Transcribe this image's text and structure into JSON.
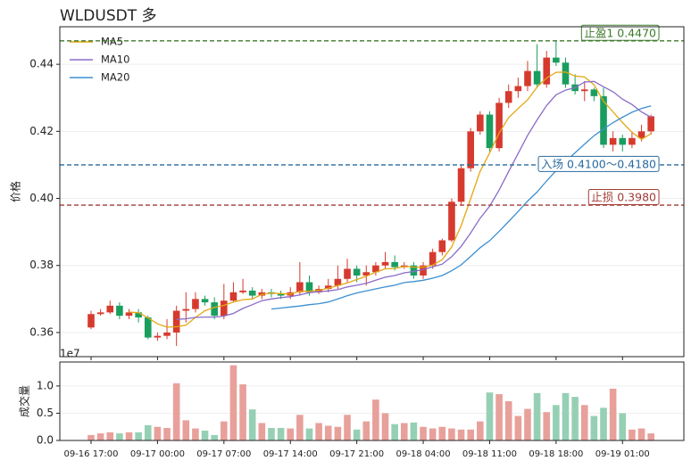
{
  "chart_data": [
    {
      "type": "candlestick",
      "title": "WLDUSDT  多",
      "ylabel": "价格",
      "offset_label": "1e7",
      "ylim": [
        0.3528,
        0.4512
      ],
      "yticks": [
        0.36,
        0.38,
        {
          "value": 0.4,
          "label": "0.40"
        },
        0.42,
        0.44
      ],
      "grid": true,
      "legend": "upper left",
      "up_color": "#d63a2e",
      "down_color": "#1a9e5f",
      "open": [
        0.3615,
        0.3655,
        0.366,
        0.368,
        0.365,
        0.366,
        0.3645,
        0.3585,
        0.359,
        0.36,
        0.3665,
        0.367,
        0.37,
        0.369,
        0.365,
        0.3695,
        0.372,
        0.3725,
        0.371,
        0.372,
        0.3715,
        0.371,
        0.372,
        0.375,
        0.372,
        0.373,
        0.374,
        0.376,
        0.379,
        0.377,
        0.378,
        0.38,
        0.381,
        0.3795,
        0.38,
        0.377,
        0.38,
        0.384,
        0.3875,
        0.399,
        0.409,
        0.42,
        0.425,
        0.415,
        0.4285,
        0.432,
        0.4335,
        0.438,
        0.434,
        0.442,
        0.4405,
        0.434,
        0.432,
        0.4325,
        0.4305,
        0.416,
        0.418,
        0.416,
        0.418,
        0.42
      ],
      "high": [
        0.3665,
        0.367,
        0.3695,
        0.369,
        0.367,
        0.367,
        0.365,
        0.36,
        0.364,
        0.368,
        0.372,
        0.372,
        0.371,
        0.3705,
        0.3745,
        0.375,
        0.376,
        0.3735,
        0.373,
        0.373,
        0.3725,
        0.3735,
        0.381,
        0.377,
        0.374,
        0.376,
        0.38,
        0.382,
        0.38,
        0.38,
        0.381,
        0.384,
        0.383,
        0.381,
        0.381,
        0.381,
        0.385,
        0.388,
        0.4,
        0.41,
        0.421,
        0.426,
        0.426,
        0.43,
        0.434,
        0.436,
        0.441,
        0.446,
        0.444,
        0.447,
        0.442,
        0.437,
        0.435,
        0.433,
        0.433,
        0.42,
        0.419,
        0.42,
        0.422,
        0.425
      ],
      "low": [
        0.361,
        0.365,
        0.3655,
        0.364,
        0.364,
        0.363,
        0.358,
        0.3575,
        0.358,
        0.356,
        0.363,
        0.366,
        0.368,
        0.364,
        0.364,
        0.369,
        0.3715,
        0.37,
        0.37,
        0.3705,
        0.37,
        0.37,
        0.371,
        0.371,
        0.3715,
        0.372,
        0.373,
        0.375,
        0.375,
        0.374,
        0.377,
        0.379,
        0.3785,
        0.379,
        0.376,
        0.376,
        0.379,
        0.383,
        0.387,
        0.398,
        0.408,
        0.419,
        0.414,
        0.414,
        0.427,
        0.43,
        0.432,
        0.433,
        0.433,
        0.4395,
        0.433,
        0.431,
        0.429,
        0.429,
        0.415,
        0.414,
        0.414,
        0.415,
        0.417,
        0.419
      ],
      "close": [
        0.3655,
        0.366,
        0.368,
        0.365,
        0.366,
        0.3645,
        0.3585,
        0.359,
        0.36,
        0.3665,
        0.367,
        0.37,
        0.369,
        0.365,
        0.3695,
        0.372,
        0.3725,
        0.371,
        0.372,
        0.3715,
        0.371,
        0.372,
        0.375,
        0.372,
        0.373,
        0.374,
        0.376,
        0.379,
        0.377,
        0.378,
        0.38,
        0.381,
        0.3795,
        0.38,
        0.377,
        0.38,
        0.384,
        0.3875,
        0.399,
        0.409,
        0.42,
        0.425,
        0.415,
        0.4285,
        0.432,
        0.4335,
        0.438,
        0.434,
        0.442,
        0.4405,
        0.434,
        0.432,
        0.4325,
        0.4305,
        0.416,
        0.418,
        0.416,
        0.418,
        0.42,
        0.4245
      ],
      "series": [
        {
          "name": "MA5",
          "color": "#e3a712",
          "values": [
            null,
            null,
            null,
            null,
            0.3661,
            0.3659,
            0.3644,
            0.3626,
            0.3616,
            0.3617,
            0.3622,
            0.3645,
            0.3665,
            0.3675,
            0.3681,
            0.3691,
            0.3698,
            0.37,
            0.3714,
            0.3718,
            0.3716,
            0.3715,
            0.3723,
            0.3723,
            0.3726,
            0.3732,
            0.374,
            0.3748,
            0.3758,
            0.3768,
            0.378,
            0.379,
            0.3791,
            0.3797,
            0.3795,
            0.3795,
            0.3801,
            0.3817,
            0.3855,
            0.3919,
            0.3999,
            0.4081,
            0.4136,
            0.4195,
            0.4241,
            0.4268,
            0.4294,
            0.4332,
            0.4359,
            0.4376,
            0.4377,
            0.4365,
            0.4362,
            0.4339,
            0.429,
            0.4258,
            0.4226,
            0.4197,
            0.4176,
            0.4193
          ]
        },
        {
          "name": "MA10",
          "color": "#8a6cc8",
          "values": [
            null,
            null,
            null,
            null,
            null,
            null,
            null,
            null,
            null,
            0.3639,
            0.3641,
            0.3645,
            0.3646,
            0.3646,
            0.3649,
            0.3657,
            0.3672,
            0.3683,
            0.3695,
            0.37,
            0.3704,
            0.3707,
            0.3712,
            0.3719,
            0.3722,
            0.3724,
            0.3728,
            0.3736,
            0.3741,
            0.3747,
            0.3756,
            0.3765,
            0.377,
            0.3778,
            0.3782,
            0.3788,
            0.3796,
            0.3804,
            0.3826,
            0.3857,
            0.3897,
            0.3941,
            0.3977,
            0.4025,
            0.408,
            0.4134,
            0.4188,
            0.4234,
            0.4277,
            0.4309,
            0.4323,
            0.433,
            0.4347,
            0.4349,
            0.4333,
            0.4318,
            0.4296,
            0.428,
            0.4258,
            0.4242
          ]
        },
        {
          "name": "MA20",
          "color": "#3d8fd1",
          "values": [
            null,
            null,
            null,
            null,
            null,
            null,
            null,
            null,
            null,
            null,
            null,
            null,
            null,
            null,
            null,
            null,
            null,
            null,
            null,
            0.367,
            0.3673,
            0.3676,
            0.3679,
            0.3683,
            0.3686,
            0.3691,
            0.37,
            0.371,
            0.3718,
            0.3724,
            0.373,
            0.3736,
            0.3741,
            0.3749,
            0.3752,
            0.3756,
            0.3762,
            0.377,
            0.3784,
            0.3802,
            0.3827,
            0.3853,
            0.3874,
            0.3902,
            0.3931,
            0.3961,
            0.3992,
            0.4019,
            0.4052,
            0.4083,
            0.411,
            0.4136,
            0.4162,
            0.4187,
            0.4207,
            0.4226,
            0.4242,
            0.4257,
            0.4268,
            0.4276
          ]
        }
      ],
      "annotations": [
        {
          "value": 0.447,
          "label": "止盈1 0.4470",
          "color": "#3d7a2a"
        },
        {
          "value": 0.41,
          "label": "入场 0.4100～0.4180",
          "color": "#2a6a9e"
        },
        {
          "value": 0.398,
          "label": "止损 0.3980",
          "color": "#a33a36"
        }
      ]
    },
    {
      "type": "bar",
      "ylabel": "成交量",
      "ylim": [
        0,
        1.44
      ],
      "yticks": [
        {
          "value": 0,
          "label": "0.0"
        },
        0.5,
        {
          "value": 1,
          "label": "1.0"
        }
      ],
      "grid": true,
      "up_color": "#e8a09b",
      "down_color": "#96d0b4",
      "categories": [
        "09-16 17:00",
        null,
        null,
        null,
        null,
        null,
        null,
        "09-17 00:00",
        null,
        null,
        null,
        null,
        null,
        null,
        "09-17 07:00",
        null,
        null,
        null,
        null,
        null,
        null,
        "09-17 14:00",
        null,
        null,
        null,
        null,
        null,
        null,
        "09-17 21:00",
        null,
        null,
        null,
        null,
        null,
        null,
        "09-18 04:00",
        null,
        null,
        null,
        null,
        null,
        null,
        "09-18 11:00",
        null,
        null,
        null,
        null,
        null,
        null,
        "09-18 18:00",
        null,
        null,
        null,
        null,
        null,
        null,
        "09-19 01:00",
        null,
        null,
        null
      ],
      "values": [
        0.1,
        0.13,
        0.15,
        0.13,
        0.15,
        0.15,
        0.28,
        0.25,
        0.23,
        1.05,
        0.37,
        0.22,
        0.18,
        0.1,
        0.35,
        1.38,
        1.03,
        0.57,
        0.32,
        0.23,
        0.23,
        0.22,
        0.47,
        0.22,
        0.32,
        0.27,
        0.25,
        0.47,
        0.2,
        0.35,
        0.75,
        0.5,
        0.3,
        0.32,
        0.33,
        0.25,
        0.22,
        0.25,
        0.22,
        0.2,
        0.2,
        0.35,
        0.88,
        0.85,
        0.72,
        0.45,
        0.58,
        0.87,
        0.52,
        0.65,
        0.87,
        0.8,
        0.65,
        0.45,
        0.6,
        0.95,
        0.5,
        0.2,
        0.22,
        0.13
      ]
    }
  ]
}
